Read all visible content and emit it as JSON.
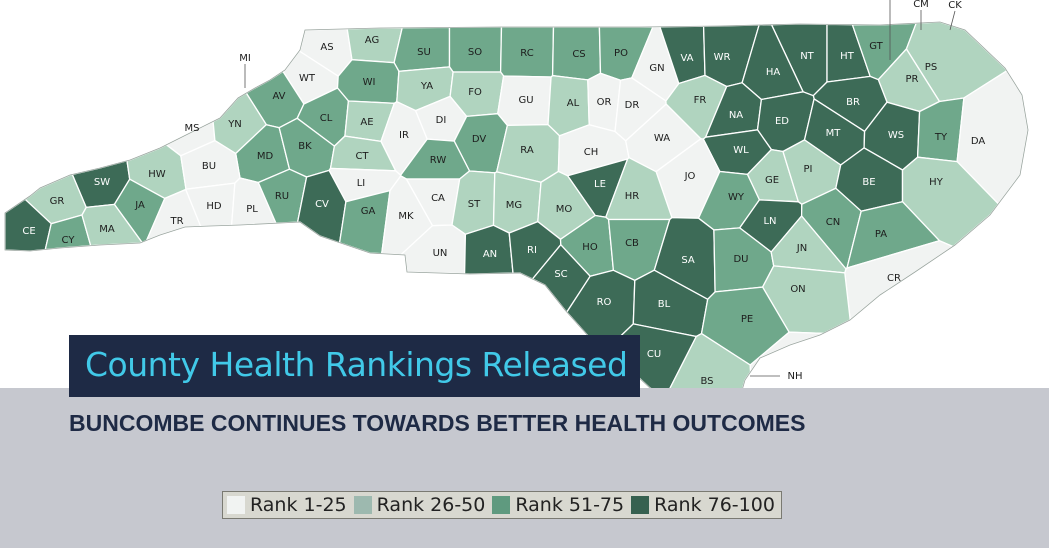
{
  "title": "County Health Rankings Released",
  "subtitle": "BUNCOMBE CONTINUES TOWARDS BETTER HEALTH OUTCOMES",
  "legend": [
    {
      "label": "Rank 1-25",
      "color": "#f1f3f2"
    },
    {
      "label": "Rank 26-50",
      "color": "#9db9af"
    },
    {
      "label": "Rank 51-75",
      "color": "#5f9a7f"
    },
    {
      "label": "Rank 76-100",
      "color": "#376150"
    }
  ],
  "map_colors": {
    "tier1": "#f1f3f2",
    "tier2": "#b0d4bf",
    "tier3": "#6fa88b",
    "tier4": "#3d6b57",
    "outline": "#ffffff"
  },
  "counties": [
    {
      "label": "AS",
      "tier": 1
    },
    {
      "label": "AG",
      "tier": 2
    },
    {
      "label": "SU",
      "tier": 3
    },
    {
      "label": "SO",
      "tier": 3
    },
    {
      "label": "RC",
      "tier": 3
    },
    {
      "label": "CS",
      "tier": 3
    },
    {
      "label": "PO",
      "tier": 3
    },
    {
      "label": "GN",
      "tier": 1
    },
    {
      "label": "VA",
      "tier": 4
    },
    {
      "label": "WR",
      "tier": 4
    },
    {
      "label": "NT",
      "tier": 4
    },
    {
      "label": "HT",
      "tier": 4
    },
    {
      "label": "GT",
      "tier": 3
    },
    {
      "label": "PS",
      "tier": 2
    },
    {
      "label": "PR",
      "tier": 2
    },
    {
      "label": "WT",
      "tier": 1
    },
    {
      "label": "WI",
      "tier": 3
    },
    {
      "label": "YA",
      "tier": 2
    },
    {
      "label": "FO",
      "tier": 2
    },
    {
      "label": "GU",
      "tier": 1
    },
    {
      "label": "AL",
      "tier": 2
    },
    {
      "label": "OR",
      "tier": 1
    },
    {
      "label": "DR",
      "tier": 1
    },
    {
      "label": "FR",
      "tier": 2
    },
    {
      "label": "HA",
      "tier": 4
    },
    {
      "label": "BR",
      "tier": 4
    },
    {
      "label": "AV",
      "tier": 3
    },
    {
      "label": "MS",
      "tier": 1
    },
    {
      "label": "YN",
      "tier": 2
    },
    {
      "label": "CL",
      "tier": 3
    },
    {
      "label": "AE",
      "tier": 2
    },
    {
      "label": "IR",
      "tier": 1
    },
    {
      "label": "DI",
      "tier": 1
    },
    {
      "label": "DV",
      "tier": 3
    },
    {
      "label": "RA",
      "tier": 2
    },
    {
      "label": "CH",
      "tier": 1
    },
    {
      "label": "WA",
      "tier": 1
    },
    {
      "label": "NA",
      "tier": 4
    },
    {
      "label": "ED",
      "tier": 4
    },
    {
      "label": "MT",
      "tier": 4
    },
    {
      "label": "WS",
      "tier": 4
    },
    {
      "label": "TY",
      "tier": 3
    },
    {
      "label": "DA",
      "tier": 1
    },
    {
      "label": "MD",
      "tier": 3
    },
    {
      "label": "BK",
      "tier": 3
    },
    {
      "label": "CT",
      "tier": 2
    },
    {
      "label": "RW",
      "tier": 3
    },
    {
      "label": "WL",
      "tier": 4
    },
    {
      "label": "SW",
      "tier": 4
    },
    {
      "label": "HW",
      "tier": 2
    },
    {
      "label": "BU",
      "tier": 1
    },
    {
      "label": "LI",
      "tier": 1
    },
    {
      "label": "LE",
      "tier": 4
    },
    {
      "label": "JO",
      "tier": 1
    },
    {
      "label": "GE",
      "tier": 2
    },
    {
      "label": "PI",
      "tier": 2
    },
    {
      "label": "BE",
      "tier": 4
    },
    {
      "label": "HY",
      "tier": 2
    },
    {
      "label": "GR",
      "tier": 2
    },
    {
      "label": "JA",
      "tier": 3
    },
    {
      "label": "TR",
      "tier": 1
    },
    {
      "label": "HD",
      "tier": 1
    },
    {
      "label": "PL",
      "tier": 1
    },
    {
      "label": "RU",
      "tier": 3
    },
    {
      "label": "CV",
      "tier": 4
    },
    {
      "label": "GA",
      "tier": 3
    },
    {
      "label": "CA",
      "tier": 1
    },
    {
      "label": "MK",
      "tier": 1
    },
    {
      "label": "ST",
      "tier": 2
    },
    {
      "label": "MG",
      "tier": 2
    },
    {
      "label": "MO",
      "tier": 2
    },
    {
      "label": "HR",
      "tier": 2
    },
    {
      "label": "WY",
      "tier": 3
    },
    {
      "label": "LN",
      "tier": 4
    },
    {
      "label": "CN",
      "tier": 3
    },
    {
      "label": "PA",
      "tier": 3
    },
    {
      "label": "CE",
      "tier": 4
    },
    {
      "label": "CY",
      "tier": 3
    },
    {
      "label": "MA",
      "tier": 2
    },
    {
      "label": "UN",
      "tier": 1
    },
    {
      "label": "AN",
      "tier": 4
    },
    {
      "label": "RI",
      "tier": 4
    },
    {
      "label": "SC",
      "tier": 4
    },
    {
      "label": "HO",
      "tier": 3
    },
    {
      "label": "CB",
      "tier": 3
    },
    {
      "label": "SA",
      "tier": 4
    },
    {
      "label": "DU",
      "tier": 3
    },
    {
      "label": "JN",
      "tier": 2
    },
    {
      "label": "CR",
      "tier": 1
    },
    {
      "label": "ON",
      "tier": 2
    },
    {
      "label": "RO",
      "tier": 4
    },
    {
      "label": "BL",
      "tier": 4
    },
    {
      "label": "PE",
      "tier": 3
    },
    {
      "label": "CU",
      "tier": 4
    },
    {
      "label": "BS",
      "tier": 2
    },
    {
      "label": "NH",
      "tier": 1
    },
    {
      "label": "MI",
      "tier": 3
    },
    {
      "label": "CM",
      "tier": 1
    },
    {
      "label": "CK",
      "tier": 1
    }
  ]
}
